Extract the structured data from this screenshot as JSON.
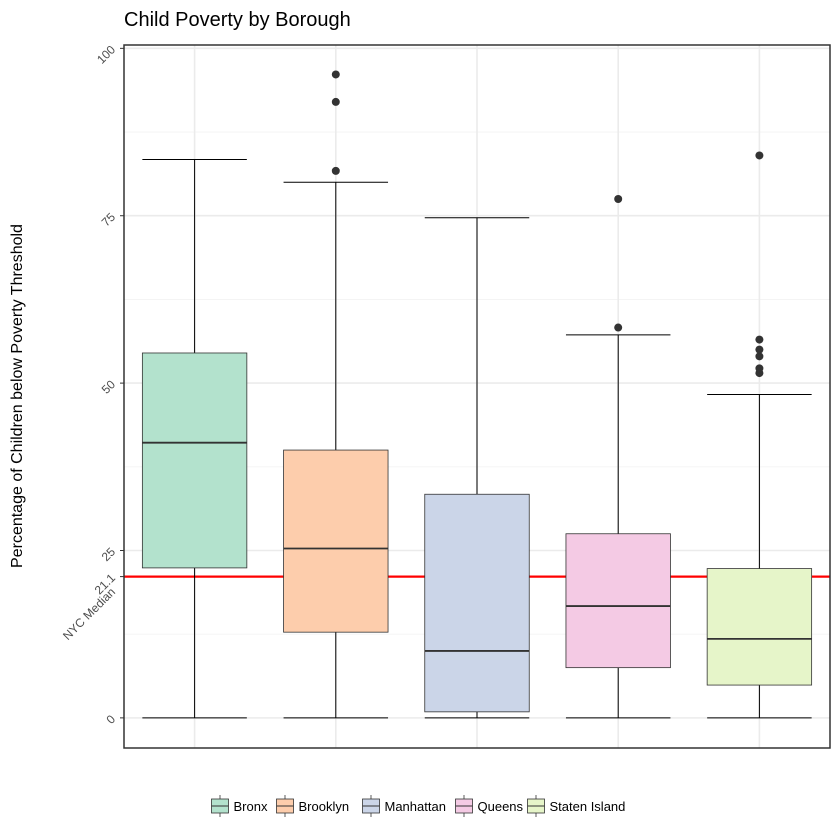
{
  "chart_data": {
    "type": "boxplot",
    "title": "Child Poverty by Borough",
    "xlabel": "",
    "ylabel": "Percentage of Children below Poverty Threshold",
    "ylim": [
      -4.5,
      100.5
    ],
    "yticks": [
      0,
      25,
      50,
      75,
      100
    ],
    "grid": true,
    "legend_position": "bottom",
    "categories": [
      "Bronx",
      "Brooklyn",
      "Manhattan",
      "Queens",
      "Staten Island"
    ],
    "series": [
      {
        "name": "Bronx",
        "color": "#b3e2cd",
        "min": 0,
        "q1": 22.4,
        "median": 41.1,
        "q3": 54.5,
        "max": 83.4,
        "outliers": []
      },
      {
        "name": "Brooklyn",
        "color": "#fdcdac",
        "min": 0,
        "q1": 12.8,
        "median": 25.3,
        "q3": 40.0,
        "max": 80.0,
        "outliers": [
          81.7,
          92.0,
          96.1
        ]
      },
      {
        "name": "Manhattan",
        "color": "#cbd5e8",
        "min": 0,
        "q1": 0.9,
        "median": 10.0,
        "q3": 33.4,
        "max": 74.7,
        "outliers": []
      },
      {
        "name": "Queens",
        "color": "#f4cae4",
        "min": 0,
        "q1": 7.5,
        "median": 16.7,
        "q3": 27.5,
        "max": 57.2,
        "outliers": [
          58.3,
          77.5
        ]
      },
      {
        "name": "Staten Island",
        "color": "#e6f5c9",
        "min": 0,
        "q1": 4.9,
        "median": 11.8,
        "q3": 22.3,
        "max": 48.3,
        "outliers": [
          51.5,
          52.2,
          54.0,
          55.0,
          56.5,
          84.0
        ]
      }
    ],
    "reference_line": {
      "value": 21.1,
      "label_value": "21.1",
      "label_text": "NYC Median",
      "color": "#ff0000"
    }
  }
}
